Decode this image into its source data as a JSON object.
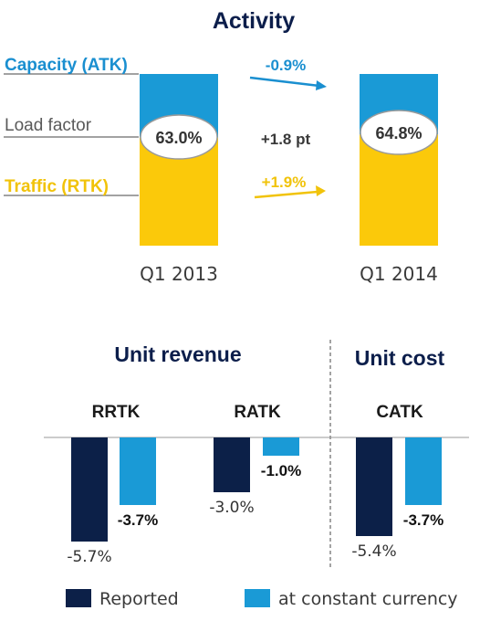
{
  "chart_data": [
    {
      "type": "bar",
      "title": "Activity",
      "categories": [
        "Q1 2013",
        "Q1 2014"
      ],
      "series": [
        {
          "name": "Capacity (ATK)",
          "values": [
            100,
            100
          ]
        },
        {
          "name": "Traffic (RTK)",
          "values": [
            63.0,
            64.8
          ]
        }
      ],
      "row_labels": {
        "capacity": "Capacity (ATK)",
        "load_factor": "Load factor",
        "traffic": "Traffic (RTK)"
      },
      "load_factor_labels": [
        "63.0%",
        "64.8%"
      ],
      "changes": {
        "capacity": "-0.9%",
        "load_factor": "+1.8 pt",
        "traffic": "+1.9%"
      },
      "colors": {
        "capacity": "#1a9ad6",
        "traffic": "#fbc90a",
        "accent_text_blue": "#1a8fd0",
        "accent_text_gold": "#f1c30a"
      }
    },
    {
      "type": "bar",
      "groups": [
        {
          "title": "Unit revenue",
          "categories": [
            "RRTK",
            "RATK"
          ]
        },
        {
          "title": "Unit cost",
          "categories": [
            "CATK"
          ]
        }
      ],
      "categories": [
        "RRTK",
        "RATK",
        "CATK"
      ],
      "series": [
        {
          "name": "Reported",
          "values": [
            -5.7,
            -3.0,
            -5.4
          ],
          "labels": [
            "-5.7%",
            "-3.0%",
            "-5.4%"
          ]
        },
        {
          "name": "at constant currency",
          "values": [
            -3.7,
            -1.0,
            -3.7
          ],
          "labels": [
            "-3.7%",
            "-1.0%",
            "-3.7%"
          ]
        }
      ],
      "ylim": [
        -6,
        0
      ],
      "legend_position": "bottom",
      "colors": {
        "reported": "#0c2048",
        "constant": "#1a9ad6"
      }
    }
  ]
}
